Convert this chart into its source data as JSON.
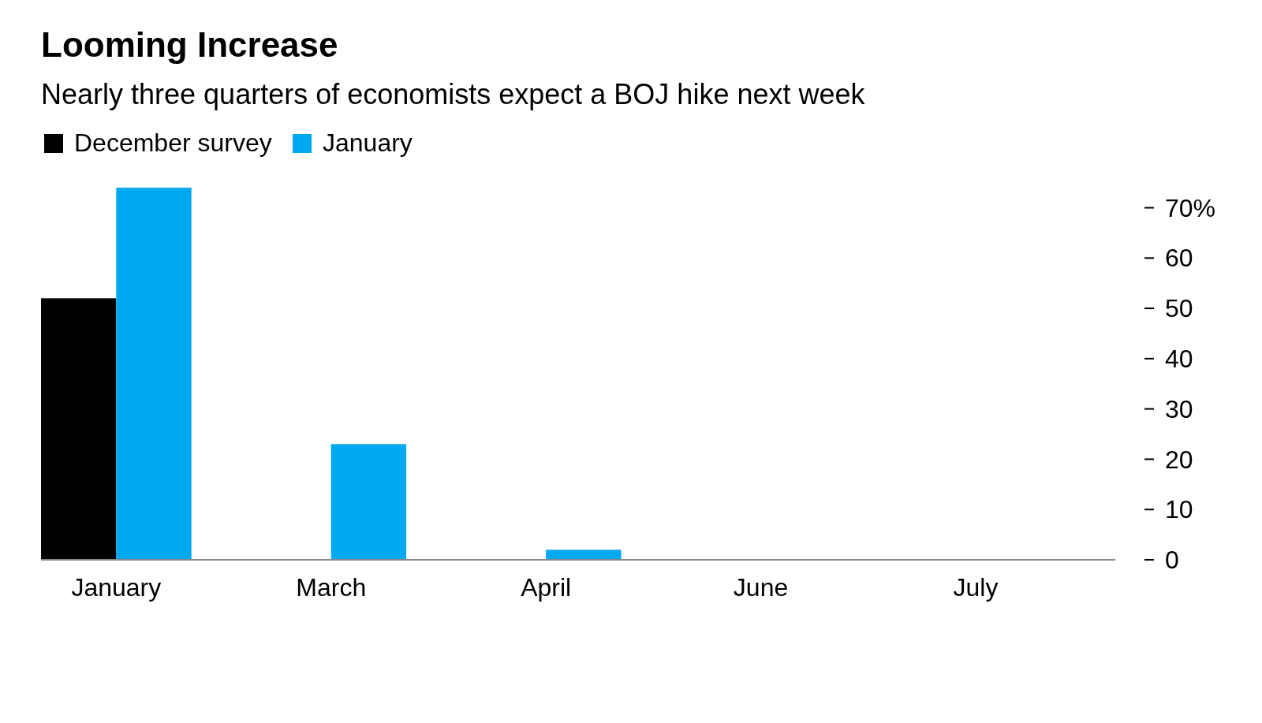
{
  "chart_data": {
    "type": "bar",
    "title": "Looming Increase",
    "subtitle": "Nearly three quarters of economists expect a BOJ hike next week",
    "categories": [
      "January",
      "March",
      "April",
      "June",
      "July"
    ],
    "series": [
      {
        "name": "December survey",
        "color": "#000000",
        "values": [
          52,
          0,
          0,
          0,
          0
        ]
      },
      {
        "name": "January",
        "color": "#00a8f0",
        "values": [
          74,
          23,
          2,
          0,
          0
        ]
      }
    ],
    "ylim": [
      0,
      74
    ],
    "yticks": [
      0,
      10,
      20,
      30,
      40,
      50,
      60,
      {
        "value": 70,
        "label": "70%"
      }
    ],
    "grid": false,
    "legend": "top left"
  }
}
